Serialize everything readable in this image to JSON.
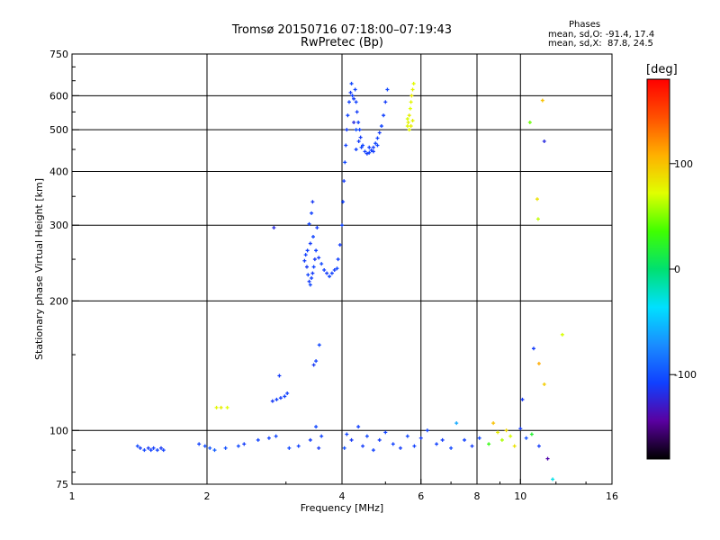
{
  "chart_data": {
    "type": "scatter",
    "title": "Tromsø 20150716 07:18:00–07:19:43",
    "subtitle": "RwPretec (Bp)",
    "xlabel": "Frequency [MHz]",
    "ylabel": "Stationary phase Virtual Height [km]",
    "x_scale": "log",
    "y_scale": "log",
    "xlim": [
      1,
      16
    ],
    "ylim": [
      75,
      750
    ],
    "x_ticks": [
      1,
      2,
      4,
      6,
      8,
      10,
      16
    ],
    "y_ticks": [
      75,
      100,
      200,
      300,
      400,
      500,
      600,
      750
    ],
    "grid": true,
    "colorbar": {
      "label": "[deg]",
      "range": [
        -180,
        180
      ],
      "ticks": [
        100,
        0,
        -100
      ],
      "colormap": "rainbow"
    },
    "stats": {
      "heading": "Phases",
      "o_line": "mean, sd,O: -91.4, 17.4",
      "x_line": "mean, sd,X:  87.8, 24.5"
    },
    "points": [
      [
        1.42,
        91,
        -110
      ],
      [
        1.45,
        90,
        -105
      ],
      [
        1.48,
        91,
        -112
      ],
      [
        1.5,
        90,
        -108
      ],
      [
        1.52,
        91,
        -110
      ],
      [
        1.55,
        90,
        -106
      ],
      [
        1.58,
        91,
        -112
      ],
      [
        1.6,
        90,
        -108
      ],
      [
        1.4,
        92,
        -104
      ],
      [
        1.92,
        93,
        -108
      ],
      [
        1.98,
        92,
        -102
      ],
      [
        2.03,
        91,
        -98
      ],
      [
        2.08,
        90,
        -94
      ],
      [
        2.2,
        91,
        -100
      ],
      [
        2.35,
        92,
        -104
      ],
      [
        2.42,
        93,
        -110
      ],
      [
        2.6,
        95,
        -106
      ],
      [
        2.75,
        96,
        -108
      ],
      [
        2.85,
        97,
        -104
      ],
      [
        2.1,
        113,
        75
      ],
      [
        2.15,
        113,
        80
      ],
      [
        2.22,
        113,
        72
      ],
      [
        2.8,
        117,
        -112
      ],
      [
        2.86,
        118,
        -108
      ],
      [
        2.92,
        119,
        -110
      ],
      [
        2.98,
        120,
        -106
      ],
      [
        3.02,
        122,
        -108
      ],
      [
        2.9,
        134,
        -110
      ],
      [
        2.82,
        296,
        -120
      ],
      [
        3.05,
        91,
        -104
      ],
      [
        3.2,
        92,
        -108
      ],
      [
        3.4,
        95,
        -110
      ],
      [
        3.5,
        102,
        -104
      ],
      [
        3.55,
        91,
        -112
      ],
      [
        3.6,
        97,
        -106
      ],
      [
        3.46,
        142,
        -112
      ],
      [
        3.5,
        145,
        -108
      ],
      [
        3.56,
        158,
        -104
      ],
      [
        3.3,
        248,
        -110
      ],
      [
        3.32,
        256,
        -108
      ],
      [
        3.34,
        240,
        -112
      ],
      [
        3.36,
        230,
        -106
      ],
      [
        3.38,
        222,
        -110
      ],
      [
        3.4,
        218,
        -104
      ],
      [
        3.42,
        226,
        -108
      ],
      [
        3.44,
        232,
        -110
      ],
      [
        3.46,
        240,
        -106
      ],
      [
        3.48,
        250,
        -112
      ],
      [
        3.35,
        262,
        -108
      ],
      [
        3.4,
        272,
        -110
      ],
      [
        3.45,
        282,
        -106
      ],
      [
        3.5,
        262,
        -108
      ],
      [
        3.55,
        252,
        -110
      ],
      [
        3.6,
        244,
        -104
      ],
      [
        3.65,
        236,
        -108
      ],
      [
        3.7,
        232,
        -110
      ],
      [
        3.75,
        228,
        -106
      ],
      [
        3.8,
        232,
        -108
      ],
      [
        3.85,
        236,
        -110
      ],
      [
        3.9,
        238,
        -104
      ],
      [
        3.42,
        320,
        -108
      ],
      [
        3.44,
        340,
        -112
      ],
      [
        3.38,
        302,
        -106
      ],
      [
        3.52,
        296,
        -110
      ],
      [
        3.92,
        250,
        -108
      ],
      [
        3.96,
        270,
        -110
      ],
      [
        4.0,
        300,
        -106
      ],
      [
        4.02,
        340,
        -108
      ],
      [
        4.04,
        380,
        -110
      ],
      [
        4.06,
        420,
        -104
      ],
      [
        4.08,
        460,
        -108
      ],
      [
        4.1,
        500,
        -110
      ],
      [
        4.12,
        540,
        -106
      ],
      [
        4.15,
        580,
        -108
      ],
      [
        4.18,
        610,
        -110
      ],
      [
        4.2,
        640,
        -104
      ],
      [
        4.22,
        600,
        -108
      ],
      [
        4.25,
        590,
        -110
      ],
      [
        4.28,
        620,
        -106
      ],
      [
        4.3,
        580,
        -108
      ],
      [
        4.32,
        550,
        -110
      ],
      [
        4.35,
        520,
        -106
      ],
      [
        4.38,
        500,
        -108
      ],
      [
        4.4,
        480,
        -110
      ],
      [
        4.45,
        460,
        -104
      ],
      [
        4.5,
        445,
        -108
      ],
      [
        4.55,
        440,
        -110
      ],
      [
        4.6,
        442,
        -106
      ],
      [
        4.65,
        448,
        -108
      ],
      [
        4.7,
        455,
        -110
      ],
      [
        4.75,
        465,
        -104
      ],
      [
        4.8,
        478,
        -108
      ],
      [
        4.85,
        492,
        -110
      ],
      [
        4.9,
        510,
        -106
      ],
      [
        4.95,
        540,
        -108
      ],
      [
        5.0,
        580,
        -110
      ],
      [
        5.05,
        620,
        -104
      ],
      [
        4.3,
        450,
        -108
      ],
      [
        4.36,
        470,
        -110
      ],
      [
        4.42,
        455,
        -106
      ],
      [
        4.6,
        455,
        -108
      ],
      [
        4.7,
        445,
        -110
      ],
      [
        4.8,
        460,
        -104
      ],
      [
        4.25,
        520,
        -120
      ],
      [
        4.3,
        500,
        -100
      ],
      [
        5.6,
        510,
        75
      ],
      [
        5.62,
        520,
        78
      ],
      [
        5.65,
        540,
        80
      ],
      [
        5.68,
        560,
        72
      ],
      [
        5.7,
        580,
        76
      ],
      [
        5.72,
        600,
        82
      ],
      [
        5.75,
        620,
        78
      ],
      [
        5.78,
        640,
        74
      ],
      [
        5.6,
        530,
        70
      ],
      [
        5.65,
        500,
        76
      ],
      [
        5.7,
        510,
        80
      ],
      [
        5.75,
        525,
        78
      ],
      [
        4.05,
        91,
        -100
      ],
      [
        4.1,
        98,
        -106
      ],
      [
        4.2,
        95,
        -112
      ],
      [
        4.35,
        102,
        -108
      ],
      [
        4.45,
        92,
        -110
      ],
      [
        4.55,
        97,
        -104
      ],
      [
        4.7,
        90,
        -108
      ],
      [
        4.85,
        95,
        -110
      ],
      [
        5.0,
        99,
        -106
      ],
      [
        5.2,
        93,
        -108
      ],
      [
        5.4,
        91,
        -110
      ],
      [
        5.6,
        97,
        -104
      ],
      [
        5.8,
        92,
        -108
      ],
      [
        6.0,
        96,
        -110
      ],
      [
        6.2,
        100,
        -106
      ],
      [
        6.5,
        93,
        -108
      ],
      [
        6.7,
        95,
        -110
      ],
      [
        7.0,
        91,
        -104
      ],
      [
        7.2,
        104,
        -60
      ],
      [
        7.5,
        95,
        -108
      ],
      [
        7.8,
        92,
        -110
      ],
      [
        8.1,
        96,
        -104
      ],
      [
        8.5,
        93,
        30
      ],
      [
        8.7,
        104,
        100
      ],
      [
        8.9,
        99,
        80
      ],
      [
        9.1,
        95,
        60
      ],
      [
        9.3,
        100,
        90
      ],
      [
        9.5,
        97,
        70
      ],
      [
        9.7,
        92,
        85
      ],
      [
        10.0,
        101,
        -110
      ],
      [
        10.3,
        96,
        -100
      ],
      [
        10.6,
        98,
        20
      ],
      [
        11.0,
        92,
        -110
      ],
      [
        10.1,
        118,
        -112
      ],
      [
        10.7,
        155,
        -110
      ],
      [
        11.0,
        143,
        110
      ],
      [
        11.3,
        128,
        95
      ],
      [
        11.5,
        86,
        -140
      ],
      [
        11.8,
        77,
        -30
      ],
      [
        10.5,
        520,
        45
      ],
      [
        11.2,
        585,
        100
      ],
      [
        11.3,
        470,
        -120
      ],
      [
        10.9,
        345,
        85
      ],
      [
        10.95,
        310,
        65
      ],
      [
        12.4,
        167,
        70
      ]
    ]
  }
}
